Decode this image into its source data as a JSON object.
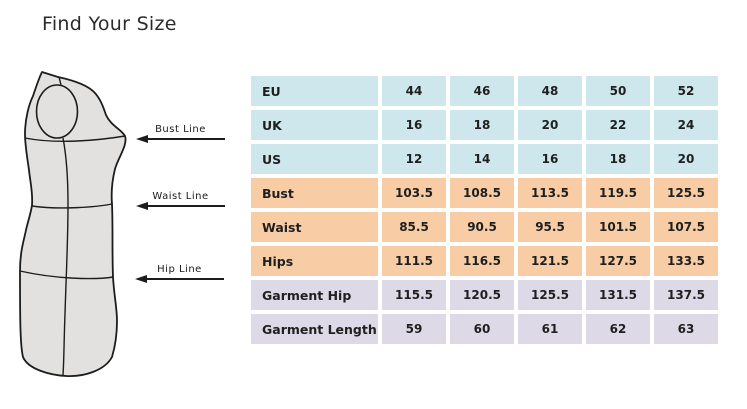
{
  "title": "Find Your Size",
  "colors": {
    "size_rows": "#cde7ec",
    "body_rows": "#f8cda5",
    "garment_rows": "#ded9e6",
    "figure_fill": "#e2e1df",
    "figure_stroke": "#1c1c1c",
    "text": "#1f1f1f"
  },
  "figure": {
    "callouts": [
      {
        "label": "Bust Line"
      },
      {
        "label": "Waist Line"
      },
      {
        "label": "Hip Line"
      }
    ]
  },
  "table": {
    "rows": [
      {
        "label": "EU",
        "group": "size",
        "values": [
          "44",
          "46",
          "48",
          "50",
          "52"
        ]
      },
      {
        "label": "UK",
        "group": "size",
        "values": [
          "16",
          "18",
          "20",
          "22",
          "24"
        ]
      },
      {
        "label": "US",
        "group": "size",
        "values": [
          "12",
          "14",
          "16",
          "18",
          "20"
        ]
      },
      {
        "label": "Bust",
        "group": "body",
        "values": [
          "103.5",
          "108.5",
          "113.5",
          "119.5",
          "125.5"
        ]
      },
      {
        "label": "Waist",
        "group": "body",
        "values": [
          "85.5",
          "90.5",
          "95.5",
          "101.5",
          "107.5"
        ]
      },
      {
        "label": "Hips",
        "group": "body",
        "values": [
          "111.5",
          "116.5",
          "121.5",
          "127.5",
          "133.5"
        ]
      },
      {
        "label": "Garment Hip",
        "group": "garment",
        "values": [
          "115.5",
          "120.5",
          "125.5",
          "131.5",
          "137.5"
        ]
      },
      {
        "label": "Garment Length",
        "group": "garment",
        "values": [
          "59",
          "60",
          "61",
          "62",
          "63"
        ]
      }
    ]
  },
  "chart_data": {
    "type": "table",
    "title": "Find Your Size",
    "row_headers": [
      "EU",
      "UK",
      "US",
      "Bust",
      "Waist",
      "Hips",
      "Garment Hip",
      "Garment Length"
    ],
    "rows": [
      [
        44,
        46,
        48,
        50,
        52
      ],
      [
        16,
        18,
        20,
        22,
        24
      ],
      [
        12,
        14,
        16,
        18,
        20
      ],
      [
        103.5,
        108.5,
        113.5,
        119.5,
        125.5
      ],
      [
        85.5,
        90.5,
        95.5,
        101.5,
        107.5
      ],
      [
        111.5,
        116.5,
        121.5,
        127.5,
        133.5
      ],
      [
        115.5,
        120.5,
        125.5,
        131.5,
        137.5
      ],
      [
        59,
        60,
        61,
        62,
        63
      ]
    ],
    "row_group_colors": {
      "size_conversion": "#cde7ec",
      "body_measurements": "#f8cda5",
      "garment_measurements": "#ded9e6"
    },
    "annotations": [
      "Bust Line",
      "Waist Line",
      "Hip Line"
    ]
  }
}
